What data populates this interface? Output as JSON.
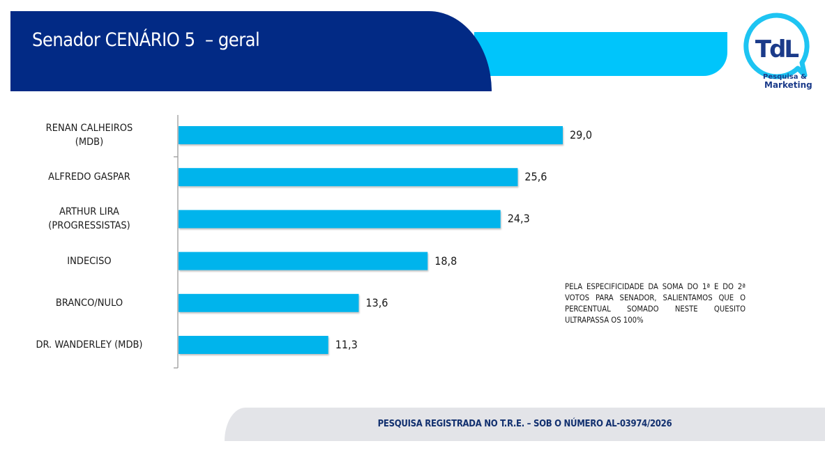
{
  "header": {
    "title": "Senador CENÁRIO 5  – geral"
  },
  "logo": {
    "mark": "TdL",
    "line1": "Pesquisa &",
    "line2": "Marketing"
  },
  "colors": {
    "header_dark": "#022a85",
    "accent_cyan": "#00c5fb",
    "bar": "#00b4ec",
    "footer_bg": "#e3e4e8",
    "footer_text": "#12306f"
  },
  "chart_data": {
    "type": "bar",
    "orientation": "horizontal",
    "title": "Senador CENÁRIO 5 – geral",
    "xlabel": "",
    "ylabel": "",
    "categories": [
      [
        "RENAN CALHEIROS",
        "(MDB)"
      ],
      [
        "ALFREDO GASPAR"
      ],
      [
        "ARTHUR LIRA",
        "(PROGRESSISTAS)"
      ],
      [
        "INDECISO"
      ],
      [
        "BRANCO/NULO"
      ],
      [
        "DR. WANDERLEY (MDB)"
      ]
    ],
    "values": [
      29.0,
      25.6,
      24.3,
      18.8,
      13.6,
      11.3
    ],
    "value_labels": [
      "29,0",
      "25,6",
      "24,3",
      "18,8",
      "13,6",
      "11,3"
    ],
    "xlim": [
      0,
      30
    ],
    "grid": false,
    "legend": "none"
  },
  "note": "PELA ESPECIFICIDADE DA SOMA DO 1ª E DO 2ª VOTOS PARA SENADOR, SALIENTAMOS QUE O PERCENTUAL SOMADO NESTE QUESITO ULTRAPASSA OS 100%",
  "footer": {
    "text": "PESQUISA REGISTRADA NO T.R.E. – SOB O NÚMERO AL-03974/2026"
  }
}
